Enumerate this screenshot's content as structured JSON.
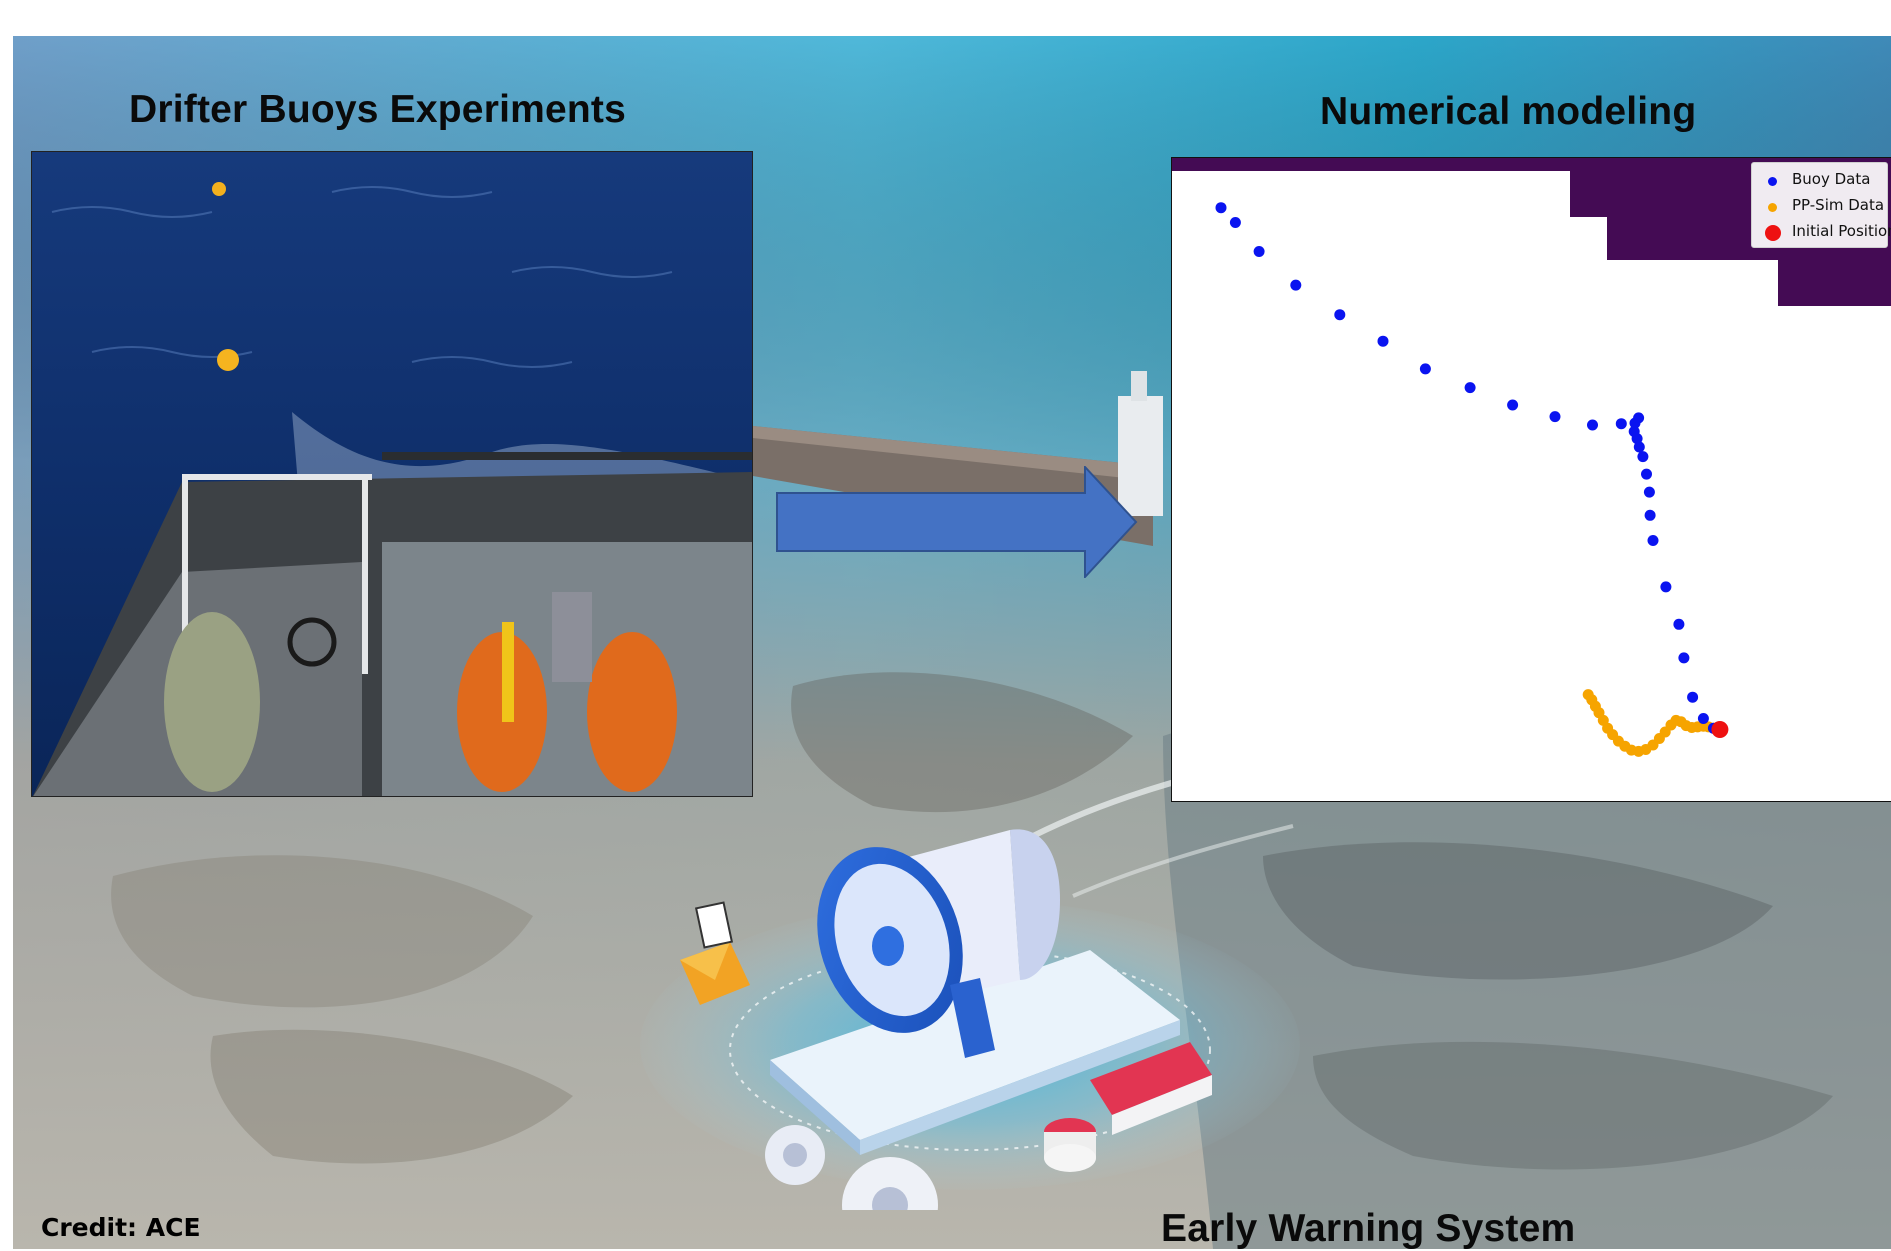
{
  "titles": {
    "left": "Drifter Buoys Experiments",
    "right": "Numerical modeling",
    "bottom": "Early Warning System"
  },
  "credit": "Credit: ACE",
  "colors": {
    "buoy": "#0a14f0",
    "sim": "#f6a400",
    "initial": "#ee1111",
    "land": "#440b54",
    "arrow": "#4472c4"
  },
  "chart_data": {
    "type": "scatter",
    "xlim": [
      0,
      100
    ],
    "ylim": [
      0,
      100
    ],
    "legend_position": "top-right",
    "grid": false,
    "series": [
      {
        "name": "Buoy Data",
        "color": "#0a14f0",
        "points": [
          [
            6.8,
            92.3
          ],
          [
            8.8,
            90.0
          ],
          [
            12.1,
            85.5
          ],
          [
            17.2,
            80.3
          ],
          [
            23.3,
            75.7
          ],
          [
            29.3,
            71.6
          ],
          [
            35.2,
            67.3
          ],
          [
            41.4,
            64.4
          ],
          [
            47.3,
            61.7
          ],
          [
            53.2,
            59.9
          ],
          [
            58.4,
            58.6
          ],
          [
            62.4,
            58.8
          ],
          [
            64.3,
            58.9
          ],
          [
            64.8,
            59.7
          ],
          [
            64.2,
            57.6
          ],
          [
            64.6,
            56.5
          ],
          [
            64.9,
            55.2
          ],
          [
            65.4,
            53.7
          ],
          [
            65.9,
            51.0
          ],
          [
            66.3,
            48.2
          ],
          [
            66.4,
            44.6
          ],
          [
            66.8,
            40.7
          ],
          [
            68.6,
            33.5
          ],
          [
            70.4,
            27.7
          ],
          [
            71.1,
            22.5
          ],
          [
            72.3,
            16.4
          ],
          [
            73.8,
            13.1
          ],
          [
            75.2,
            11.6
          ]
        ]
      },
      {
        "name": "PP-Sim Data",
        "color": "#f6a400",
        "points": [
          [
            57.8,
            16.8
          ],
          [
            58.3,
            16.0
          ],
          [
            58.8,
            15.0
          ],
          [
            59.3,
            14.0
          ],
          [
            59.9,
            12.8
          ],
          [
            60.5,
            11.6
          ],
          [
            61.2,
            10.6
          ],
          [
            62.0,
            9.6
          ],
          [
            62.9,
            8.8
          ],
          [
            63.8,
            8.2
          ],
          [
            64.8,
            8.0
          ],
          [
            65.8,
            8.3
          ],
          [
            66.8,
            9.0
          ],
          [
            67.7,
            10.0
          ],
          [
            68.5,
            11.0
          ],
          [
            69.3,
            12.1
          ],
          [
            70.0,
            12.8
          ],
          [
            70.7,
            12.6
          ],
          [
            71.4,
            12.0
          ],
          [
            72.2,
            11.7
          ],
          [
            73.0,
            11.8
          ],
          [
            73.8,
            11.9
          ],
          [
            74.5,
            11.8
          ],
          [
            75.2,
            11.6
          ]
        ]
      },
      {
        "name": "Initial Position",
        "color": "#ee1111",
        "points": [
          [
            76.1,
            11.4
          ]
        ]
      }
    ]
  }
}
